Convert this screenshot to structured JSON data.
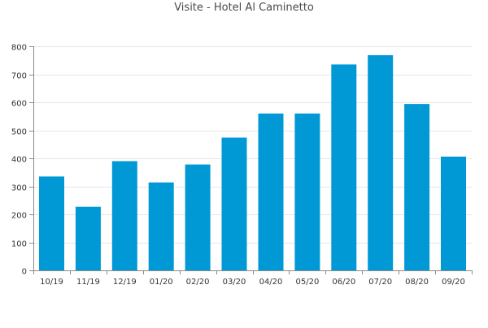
{
  "chart_data": {
    "type": "bar",
    "title": "Visite - Hotel Al Caminetto",
    "xlabel": "",
    "ylabel": "",
    "categories": [
      "10/19",
      "11/19",
      "12/19",
      "01/20",
      "02/20",
      "03/20",
      "04/20",
      "05/20",
      "06/20",
      "07/20",
      "08/20",
      "09/20"
    ],
    "values": [
      335,
      227,
      390,
      314,
      378,
      474,
      560,
      560,
      735,
      768,
      594,
      406
    ],
    "ylim": [
      0,
      800
    ],
    "yticks": [
      0,
      100,
      200,
      300,
      400,
      500,
      600,
      700,
      800
    ],
    "grid": true,
    "bar_color": "#0099d6",
    "grid_color": "#e6e6e6",
    "axis_color": "#8a8a8a",
    "text_color": "#333333"
  }
}
